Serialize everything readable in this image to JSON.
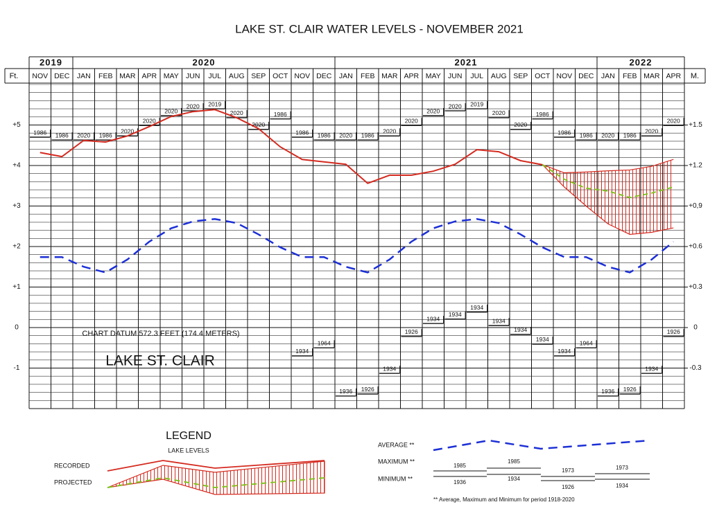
{
  "chart_data": {
    "type": "line",
    "title": "LAKE ST. CLAIR WATER LEVELS - NOVEMBER 2021",
    "years": [
      "2019",
      "2020",
      "2021",
      "2022"
    ],
    "categories": [
      "NOV",
      "DEC",
      "JAN",
      "FEB",
      "MAR",
      "APR",
      "MAY",
      "JUN",
      "JUL",
      "AUG",
      "SEP",
      "OCT",
      "NOV",
      "DEC",
      "JAN",
      "FEB",
      "MAR",
      "APR",
      "MAY",
      "JUN",
      "JUL",
      "AUG",
      "SEP",
      "OCT",
      "NOV",
      "DEC",
      "JAN",
      "FEB",
      "MAR",
      "APR"
    ],
    "ylabel": "Ft.",
    "y2label": "M.",
    "ylim": [
      -2,
      6
    ],
    "yticks": [
      {
        "value": 5,
        "label": "+5"
      },
      {
        "value": 4,
        "label": "+4"
      },
      {
        "value": 3,
        "label": "+3"
      },
      {
        "value": 2,
        "label": "+2"
      },
      {
        "value": 1,
        "label": "+1"
      },
      0,
      -1
    ],
    "y2lim": [
      -0.6,
      1.8
    ],
    "y2ticks": [
      {
        "value": 1.5,
        "label": "+1.5"
      },
      {
        "value": 1.2,
        "label": "+1.2"
      },
      {
        "value": 0.9,
        "label": "+0,9"
      },
      {
        "value": 0.6,
        "label": "+0.6"
      },
      {
        "value": 0.3,
        "label": "+0.3"
      },
      0,
      {
        "value": -0.3,
        "label": "-0.3"
      }
    ],
    "grid": true,
    "annotations": [
      "CHART DATUM 572.3 FEET (174.4 METERS)",
      "LAKE ST. CLAIR"
    ],
    "series": [
      {
        "name": "RECORDED",
        "color": "#d42a1f",
        "values": [
          4.32,
          4.22,
          4.62,
          4.58,
          4.73,
          4.96,
          5.21,
          5.33,
          5.38,
          5.18,
          4.91,
          4.46,
          4.15,
          4.09,
          4.03,
          3.56,
          3.76,
          3.76,
          3.86,
          4.03,
          4.39,
          4.34,
          4.12,
          4.02,
          null,
          null,
          null,
          null,
          null,
          null
        ]
      },
      {
        "name": "PROJECTED",
        "color": "#7dc41f",
        "range_color": "#d42a1f",
        "values": [
          null,
          null,
          null,
          null,
          null,
          null,
          null,
          null,
          null,
          null,
          null,
          null,
          null,
          null,
          null,
          null,
          null,
          null,
          null,
          null,
          null,
          null,
          null,
          4.02,
          3.66,
          3.44,
          3.37,
          3.21,
          3.32,
          3.47
        ],
        "upper": [
          null,
          null,
          null,
          null,
          null,
          null,
          null,
          null,
          null,
          null,
          null,
          null,
          null,
          null,
          null,
          null,
          null,
          null,
          null,
          null,
          null,
          null,
          null,
          4.02,
          3.82,
          3.84,
          3.87,
          3.89,
          3.98,
          4.15
        ],
        "lower": [
          null,
          null,
          null,
          null,
          null,
          null,
          null,
          null,
          null,
          null,
          null,
          null,
          null,
          null,
          null,
          null,
          null,
          null,
          null,
          null,
          null,
          null,
          null,
          4.02,
          3.47,
          3.0,
          2.56,
          2.3,
          2.35,
          2.46
        ]
      },
      {
        "name": "AVERAGE **",
        "color": "#1c2fd6",
        "values": [
          1.74,
          1.74,
          1.5,
          1.36,
          1.68,
          2.12,
          2.45,
          2.62,
          2.68,
          2.58,
          2.3,
          1.98,
          1.74,
          1.74,
          1.5,
          1.36,
          1.68,
          2.12,
          2.45,
          2.62,
          2.68,
          2.58,
          2.3,
          1.98,
          1.74,
          1.74,
          1.5,
          1.36,
          1.68,
          2.12
        ]
      },
      {
        "name": "MAXIMUM **",
        "color": "#000000",
        "values": [
          4.7,
          4.63,
          4.63,
          4.63,
          4.73,
          4.99,
          5.23,
          5.35,
          5.4,
          5.18,
          4.89,
          5.15,
          4.7,
          4.63,
          4.63,
          4.63,
          4.73,
          4.99,
          5.23,
          5.35,
          5.4,
          5.18,
          4.89,
          5.15,
          4.7,
          4.63,
          4.63,
          4.63,
          4.73,
          4.99
        ],
        "years": [
          "1986",
          "1986",
          "2020",
          "1986",
          "2020",
          "2020",
          "2020",
          "2020",
          "2019",
          "2020",
          "2020",
          "1986",
          "1986",
          "1986",
          "2020",
          "1986",
          "2020",
          "2020",
          "2020",
          "2020",
          "2019",
          "2020",
          "2020",
          "1986",
          "1986",
          "1986",
          "2020",
          "1986",
          "2020",
          "2020"
        ]
      },
      {
        "name": "MINIMUM **",
        "color": "#000000",
        "values": [
          null,
          null,
          null,
          null,
          null,
          null,
          null,
          null,
          null,
          null,
          null,
          null,
          -0.7,
          -0.5,
          -1.69,
          -1.64,
          -1.13,
          -0.22,
          0.1,
          0.21,
          0.38,
          0.05,
          -0.17,
          -0.41,
          -0.7,
          -0.5,
          -1.69,
          -1.64,
          -1.13,
          -0.22
        ],
        "years": [
          null,
          null,
          null,
          null,
          null,
          null,
          null,
          null,
          null,
          null,
          null,
          null,
          "1934",
          "1964",
          "1936",
          "1926",
          "1934",
          "1926",
          "1934",
          "1934",
          "1934",
          "1934",
          "1934",
          "1934",
          "1934",
          "1964",
          "1936",
          "1926",
          "1934",
          "1926"
        ]
      }
    ],
    "legend": {
      "title": "LEGEND",
      "subtitle": "LAKE LEVELS",
      "maximum_examples": [
        "1985",
        "1985",
        "1973",
        "1973"
      ],
      "minimum_examples": [
        "1936",
        "1934",
        "1926",
        "1934"
      ],
      "note": "** Average, Maximum and Minimum for period 1918-2020"
    }
  }
}
